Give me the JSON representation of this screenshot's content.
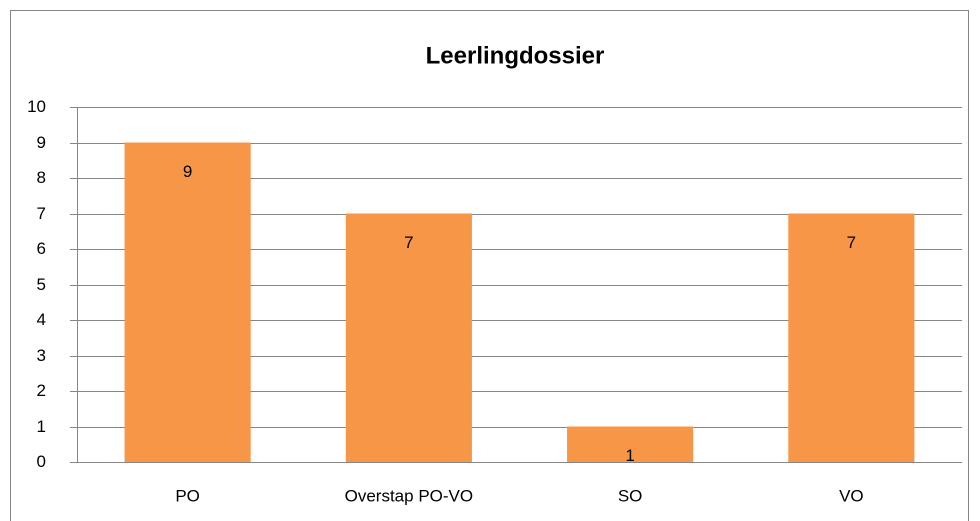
{
  "chart_data": {
    "type": "bar",
    "title": "Leerlingdossier",
    "categories": [
      "PO",
      "Overstap PO-VO",
      "SO",
      "VO"
    ],
    "values": [
      9,
      7,
      1,
      7
    ],
    "color": "#f79646",
    "ylim": [
      0,
      10
    ],
    "yticks": [
      0,
      1,
      2,
      3,
      4,
      5,
      6,
      7,
      8,
      9,
      10
    ],
    "grid": true
  }
}
